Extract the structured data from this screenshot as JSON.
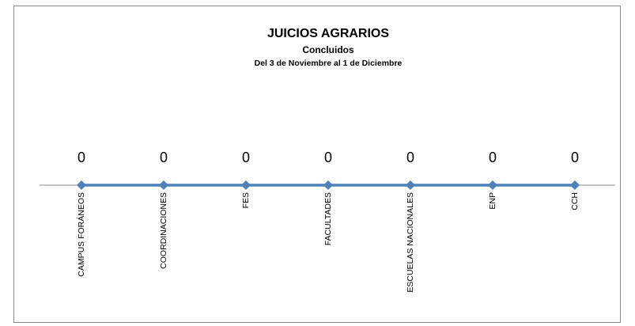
{
  "chart_data": {
    "type": "line",
    "title": "JUICIOS AGRARIOS",
    "subtitle": "Concluidos",
    "subtitle2": "Del 3 de Noviembre al 1 de Diciembre",
    "categories": [
      "CAMPUS FORÁNEOS",
      "COORDINACIONES",
      "FES",
      "FACULTADES",
      "ESCUELAS NACIONALES",
      "ENP",
      "CCH"
    ],
    "values": [
      0,
      0,
      0,
      0,
      0,
      0,
      0
    ],
    "color": "#4f81bd"
  }
}
